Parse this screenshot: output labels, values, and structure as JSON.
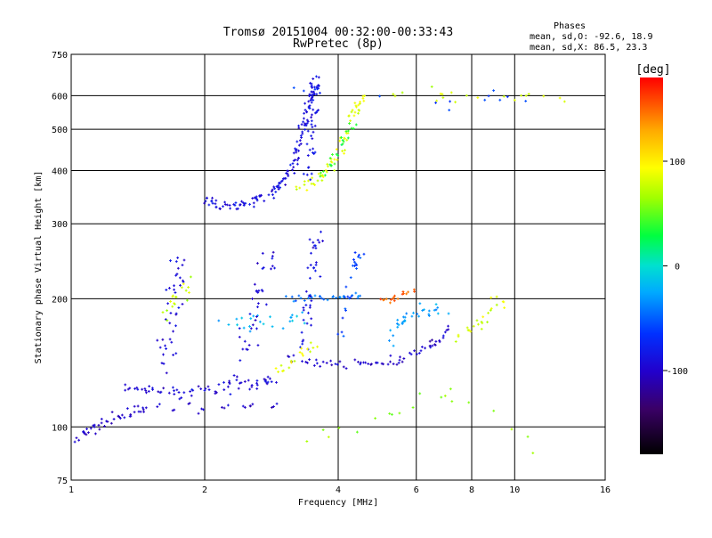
{
  "chart_data": {
    "type": "scatter",
    "title": "Tromsø 20151004 00:32:00-00:33:43",
    "subtitle": "RwPretec (8p)",
    "phase_info": {
      "heading": "Phases",
      "line_o": "mean, sd,O: -92.6, 18.9",
      "line_x": "mean, sd,X:  86.5, 23.3"
    },
    "xlabel": "Frequency [MHz]",
    "ylabel": "Stationary phase Virtual Height [km]",
    "xscale": "log",
    "yscale": "log",
    "xlim": [
      1,
      16
    ],
    "ylim": [
      75,
      750
    ],
    "x_ticks": [
      1,
      2,
      4,
      6,
      8,
      10,
      16
    ],
    "x_tick_labels": [
      "1",
      "2",
      "4",
      "6",
      "8",
      "10",
      "16"
    ],
    "y_ticks": [
      75,
      100,
      200,
      300,
      400,
      500,
      600,
      750
    ],
    "y_tick_labels": [
      "75",
      "100",
      "200",
      "300",
      "400",
      "500",
      "600",
      "750"
    ],
    "grid": true,
    "colorbar": {
      "label": "[deg]",
      "range": [
        -180,
        180
      ],
      "ticks": [
        100,
        0,
        -100
      ],
      "tick_labels": [
        "100",
        "0",
        "-100"
      ]
    },
    "traces": [
      {
        "id": "o-lower-E",
        "phase": -100,
        "seed": 11,
        "pts": [
          [
            1.02,
            92
          ],
          [
            1.1,
            98
          ],
          [
            1.2,
            103
          ],
          [
            1.3,
            106
          ],
          [
            1.45,
            110
          ]
        ],
        "spread": 0.035,
        "density": 10
      },
      {
        "id": "o-lower-F1",
        "phase": -95,
        "seed": 12,
        "pts": [
          [
            1.3,
            125
          ],
          [
            1.5,
            122
          ],
          [
            1.8,
            121
          ],
          [
            2.2,
            123
          ],
          [
            2.6,
            126
          ],
          [
            2.9,
            130
          ]
        ],
        "spread": 0.045,
        "density": 14
      },
      {
        "id": "o-F2-lower",
        "phase": -100,
        "seed": 13,
        "pts": [
          [
            3.1,
            145
          ],
          [
            3.6,
            142
          ],
          [
            4.2,
            141
          ],
          [
            4.8,
            141
          ],
          [
            5.4,
            143
          ],
          [
            6.0,
            148
          ],
          [
            6.6,
            158
          ],
          [
            7.2,
            170
          ]
        ],
        "spread": 0.04,
        "density": 10
      },
      {
        "id": "o-F2-upper-ramp",
        "phase": -90,
        "seed": 14,
        "pts": [
          [
            2.0,
            340
          ],
          [
            2.2,
            330
          ],
          [
            2.5,
            335
          ],
          [
            2.8,
            350
          ],
          [
            3.0,
            375
          ],
          [
            3.2,
            420
          ],
          [
            3.3,
            480
          ],
          [
            3.4,
            540
          ],
          [
            3.5,
            600
          ],
          [
            3.55,
            640
          ]
        ],
        "spread": 0.035,
        "density": 16
      },
      {
        "id": "o-column-3.4",
        "phase": -85,
        "seed": 15,
        "pts": [
          [
            3.4,
            380
          ],
          [
            3.45,
            450
          ],
          [
            3.5,
            520
          ],
          [
            3.55,
            600
          ],
          [
            3.6,
            650
          ]
        ],
        "spread": 0.05,
        "density": 10
      },
      {
        "id": "x-ramp-yellow",
        "phase": 85,
        "seed": 16,
        "pts": [
          [
            3.2,
            365
          ],
          [
            3.5,
            375
          ],
          [
            3.8,
            400
          ],
          [
            4.0,
            440
          ],
          [
            4.2,
            500
          ],
          [
            4.4,
            560
          ],
          [
            4.6,
            600
          ]
        ],
        "spread": 0.04,
        "density": 10
      },
      {
        "id": "x-greens",
        "phase": 40,
        "seed": 17,
        "pts": [
          [
            3.6,
            380
          ],
          [
            3.9,
            420
          ],
          [
            4.1,
            470
          ],
          [
            4.3,
            520
          ]
        ],
        "spread": 0.04,
        "density": 8
      },
      {
        "id": "band-200",
        "phase": -40,
        "seed": 18,
        "pts": [
          [
            3.0,
            200
          ],
          [
            3.5,
            201
          ],
          [
            4.0,
            200
          ],
          [
            4.5,
            202
          ]
        ],
        "spread": 0.03,
        "density": 10
      },
      {
        "id": "cyan-mid",
        "phase": -20,
        "seed": 19,
        "pts": [
          [
            2.2,
            170
          ],
          [
            2.6,
            175
          ],
          [
            3.0,
            180
          ],
          [
            3.4,
            178
          ]
        ],
        "spread": 0.08,
        "density": 8
      },
      {
        "id": "column-1.7",
        "phase": -90,
        "seed": 20,
        "pts": [
          [
            1.6,
            130
          ],
          [
            1.65,
            160
          ],
          [
            1.7,
            190
          ],
          [
            1.72,
            220
          ],
          [
            1.75,
            250
          ]
        ],
        "spread": 0.07,
        "density": 10
      },
      {
        "id": "column-1.7-x",
        "phase": 75,
        "seed": 21,
        "pts": [
          [
            1.6,
            180
          ],
          [
            1.7,
            195
          ],
          [
            1.8,
            210
          ],
          [
            1.85,
            230
          ]
        ],
        "spread": 0.05,
        "density": 6
      },
      {
        "id": "column-2.6",
        "phase": -95,
        "seed": 22,
        "pts": [
          [
            2.4,
            130
          ],
          [
            2.5,
            160
          ],
          [
            2.6,
            190
          ],
          [
            2.7,
            220
          ],
          [
            2.8,
            260
          ]
        ],
        "spread": 0.08,
        "density": 10
      },
      {
        "id": "column-3.5-lower",
        "phase": -90,
        "seed": 23,
        "pts": [
          [
            3.3,
            150
          ],
          [
            3.4,
            180
          ],
          [
            3.5,
            220
          ],
          [
            3.55,
            260
          ],
          [
            3.6,
            300
          ]
        ],
        "spread": 0.06,
        "density": 10
      },
      {
        "id": "x-lower-yellow",
        "phase": 90,
        "seed": 24,
        "pts": [
          [
            2.9,
            135
          ],
          [
            3.1,
            140
          ],
          [
            3.3,
            150
          ],
          [
            3.6,
            155
          ]
        ],
        "spread": 0.04,
        "density": 6
      },
      {
        "id": "orange-5",
        "phase": 150,
        "seed": 25,
        "pts": [
          [
            5.0,
            198
          ],
          [
            5.3,
            200
          ],
          [
            5.6,
            205
          ],
          [
            5.9,
            210
          ]
        ],
        "spread": 0.025,
        "density": 6
      },
      {
        "id": "cyan-5.5",
        "phase": -30,
        "seed": 26,
        "pts": [
          [
            5.3,
            160
          ],
          [
            5.6,
            175
          ],
          [
            5.9,
            185
          ],
          [
            6.4,
            190
          ],
          [
            7.0,
            180
          ]
        ],
        "spread": 0.06,
        "density": 8
      },
      {
        "id": "x-8-9",
        "phase": 80,
        "seed": 27,
        "pts": [
          [
            7.5,
            160
          ],
          [
            8.0,
            170
          ],
          [
            8.5,
            175
          ],
          [
            9.0,
            190
          ],
          [
            9.5,
            200
          ]
        ],
        "spread": 0.06,
        "density": 6
      },
      {
        "id": "column-4.2",
        "phase": -60,
        "seed": 28,
        "pts": [
          [
            4.0,
            160
          ],
          [
            4.2,
            200
          ],
          [
            4.3,
            230
          ],
          [
            4.4,
            250
          ],
          [
            4.6,
            255
          ]
        ],
        "spread": 0.05,
        "density": 6
      },
      {
        "id": "sparse-top",
        "phase": 80,
        "seed": 29,
        "pts": [
          [
            5.2,
            600
          ],
          [
            6.5,
            610
          ],
          [
            7.0,
            590
          ],
          [
            8.5,
            600
          ],
          [
            10.5,
            600
          ],
          [
            13.5,
            580
          ]
        ],
        "spread": 0.05,
        "density": 4
      },
      {
        "id": "sparse-top-blue",
        "phase": -60,
        "seed": 30,
        "pts": [
          [
            2.8,
            620
          ],
          [
            6.0,
            580
          ],
          [
            7.5,
            560
          ],
          [
            9.0,
            600
          ],
          [
            10.2,
            560
          ]
        ],
        "spread": 0.06,
        "density": 3
      },
      {
        "id": "low-noise-blue",
        "phase": -100,
        "seed": 31,
        "pts": [
          [
            1.3,
            110
          ],
          [
            1.6,
            112
          ],
          [
            2.0,
            110
          ],
          [
            2.5,
            112
          ],
          [
            3.0,
            113
          ]
        ],
        "spread": 0.04,
        "density": 6
      },
      {
        "id": "low-noise-x",
        "phase": 60,
        "seed": 32,
        "pts": [
          [
            3.5,
            95
          ],
          [
            4.5,
            100
          ],
          [
            5.5,
            110
          ],
          [
            7.0,
            120
          ],
          [
            8.5,
            110
          ],
          [
            12.5,
            80
          ]
        ],
        "spread": 0.06,
        "density": 4
      }
    ]
  }
}
